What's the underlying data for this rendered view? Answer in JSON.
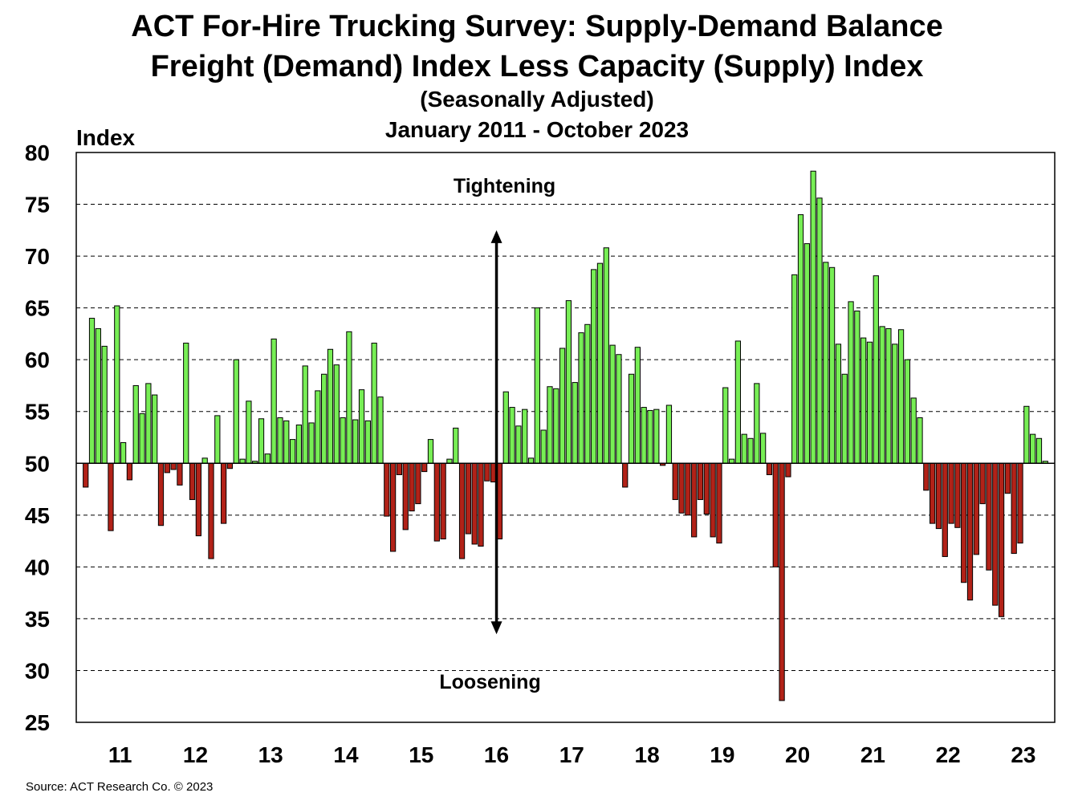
{
  "title": "ACT For-Hire Trucking Survey: Supply-Demand Balance",
  "subtitle": "Freight (Demand) Index Less Capacity (Supply) Index",
  "subtitle2": "(Seasonally Adjusted)",
  "date_range": "January 2011 - October 2023",
  "ylabel": "Index",
  "source": "Source: ACT Research Co. © 2023",
  "colors": {
    "above": "#77ee55",
    "below": "#b22218",
    "outline": "#000000"
  },
  "chart_data": {
    "type": "bar",
    "baseline": 50,
    "ylim": [
      25,
      80
    ],
    "yticks": [
      25,
      30,
      35,
      40,
      45,
      50,
      55,
      60,
      65,
      70,
      75,
      80
    ],
    "xtick_labels": [
      "11",
      "12",
      "13",
      "14",
      "15",
      "16",
      "17",
      "18",
      "19",
      "20",
      "21",
      "22",
      "23"
    ],
    "grid": "horizontal-dashed",
    "annotations": {
      "top": "Tightening",
      "bottom": "Loosening"
    },
    "start": "2011-01",
    "end": "2023-10",
    "values": [
      47.7,
      64.0,
      63.0,
      61.3,
      43.5,
      65.2,
      52.0,
      48.4,
      57.5,
      54.8,
      57.7,
      56.6,
      44.0,
      49.1,
      49.4,
      47.9,
      61.6,
      46.5,
      43.0,
      50.5,
      40.8,
      54.6,
      44.2,
      49.5,
      60.0,
      50.4,
      56.0,
      50.2,
      54.3,
      50.9,
      62.0,
      54.4,
      54.1,
      52.3,
      53.7,
      59.4,
      53.9,
      57.0,
      58.6,
      61.0,
      59.5,
      54.4,
      62.7,
      54.2,
      57.1,
      54.1,
      61.6,
      56.4,
      44.9,
      41.5,
      48.9,
      43.6,
      45.4,
      46.1,
      49.2,
      52.3,
      42.5,
      42.7,
      50.4,
      53.4,
      40.8,
      43.2,
      42.2,
      42.0,
      48.3,
      48.2,
      42.7,
      56.9,
      55.4,
      53.6,
      55.2,
      50.5,
      65.0,
      53.2,
      57.4,
      57.2,
      61.1,
      65.7,
      57.8,
      62.6,
      63.4,
      68.7,
      69.3,
      70.8,
      61.4,
      60.5,
      47.7,
      58.6,
      61.2,
      55.4,
      55.1,
      55.2,
      49.8,
      55.6,
      46.5,
      45.2,
      45.0,
      42.9,
      46.5,
      45.1,
      42.9,
      42.3,
      57.3,
      50.4,
      61.8,
      52.8,
      52.4,
      57.7,
      52.9,
      48.9,
      40.0,
      27.1,
      48.7,
      68.2,
      74.0,
      71.2,
      78.2,
      75.6,
      69.4,
      68.9,
      61.5,
      58.6,
      65.6,
      64.7,
      62.1,
      61.7,
      68.1,
      63.2,
      63.0,
      61.5,
      62.9,
      60.0,
      56.3,
      54.4,
      47.4,
      44.2,
      43.7,
      41.0,
      44.2,
      43.8,
      38.5,
      36.8,
      41.2,
      46.1,
      39.7,
      36.3,
      35.2,
      47.1,
      41.3,
      42.3,
      55.5,
      52.8,
      52.4,
      50.2
    ]
  }
}
